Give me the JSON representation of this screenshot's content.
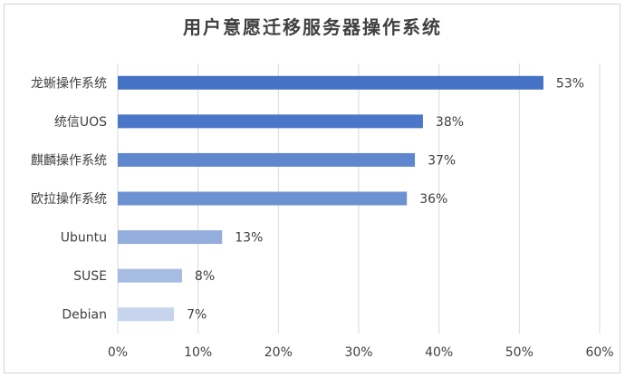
{
  "chart_data": {
    "type": "bar",
    "orientation": "horizontal",
    "title": "用户意愿迁移服务器操作系统",
    "categories": [
      "龙蜥操作系统",
      "统信UOS",
      "麒麟操作系统",
      "欧拉操作系统",
      "Ubuntu",
      "SUSE",
      "Debian"
    ],
    "values": [
      53,
      38,
      37,
      36,
      13,
      8,
      7
    ],
    "value_labels": [
      "53%",
      "38%",
      "37%",
      "36%",
      "13%",
      "8%",
      "7%"
    ],
    "bar_colors": [
      "#4472c4",
      "#4a77c7",
      "#5f87cd",
      "#6d92d2",
      "#93aedd",
      "#a6bce3",
      "#c7d4ee"
    ],
    "xlim": [
      0,
      60
    ],
    "xticks": [
      "0%",
      "10%",
      "20%",
      "30%",
      "40%",
      "50%",
      "60%"
    ],
    "grid": true,
    "legend": "none"
  }
}
